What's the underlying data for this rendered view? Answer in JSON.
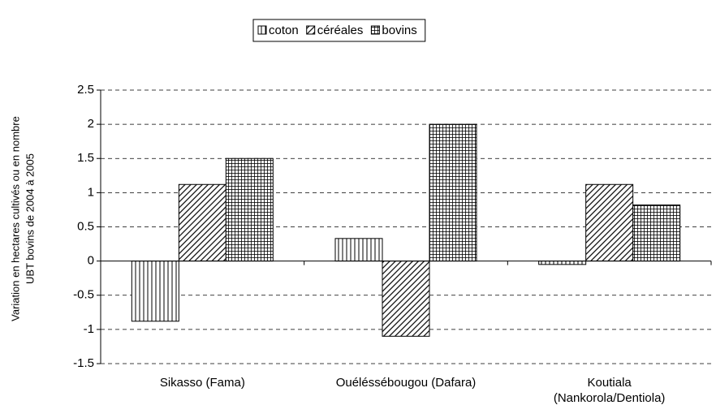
{
  "chart_data": {
    "type": "bar",
    "y_label": [
      "Variation en hectares cultivés ou en nombre",
      "UBT bovins de 2004 à 2005"
    ],
    "categories": [
      "Sikasso (Fama)",
      "Ouéléssébougou (Dafara)",
      "Koutiala (Nankorola/Dentiola)"
    ],
    "series": [
      {
        "name": "coton",
        "color": "#000000",
        "pattern": "vertical",
        "values": [
          -0.88,
          0.33,
          -0.05
        ]
      },
      {
        "name": "céréales",
        "color": "#000000",
        "pattern": "diagonal",
        "values": [
          1.12,
          -1.1,
          1.12
        ]
      },
      {
        "name": "bovins",
        "color": "#000000",
        "pattern": "grid",
        "values": [
          1.5,
          2.0,
          0.82
        ]
      }
    ],
    "ylim": [
      -1.5,
      2.5
    ],
    "yticks": [
      -1.5,
      -1,
      -0.5,
      0,
      0.5,
      1,
      1.5,
      2,
      2.5
    ],
    "grid": true,
    "legend": "top"
  }
}
